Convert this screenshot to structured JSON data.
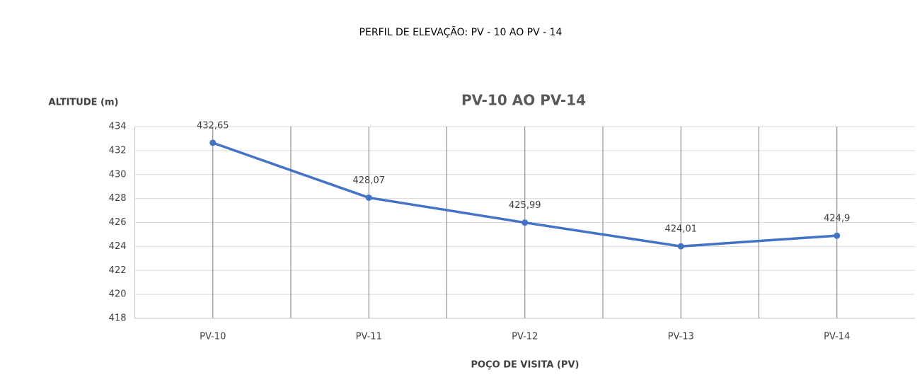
{
  "page_title": "PERFIL DE ELEVAÇÃO: PV - 10 AO PV - 14",
  "chart_data": {
    "type": "line",
    "title": "PV-10 AO PV-14",
    "y_label": "ALTITUDE (m)",
    "x_label": "POÇO DE VISITA (PV)",
    "categories": [
      "PV-10",
      "PV-11",
      "PV-12",
      "PV-13",
      "PV-14"
    ],
    "series": [
      {
        "name": "PV-10 AO PV-14",
        "color": "#4472c4",
        "values": [
          432.65,
          428.07,
          425.99,
          424.01,
          424.9
        ],
        "value_labels": [
          "432,65",
          "428,07",
          "425,99",
          "424,01",
          "424,9"
        ]
      }
    ],
    "ylim": [
      418,
      434
    ],
    "yticks": [
      418,
      420,
      422,
      424,
      426,
      428,
      430,
      432,
      434
    ],
    "grid": true
  }
}
